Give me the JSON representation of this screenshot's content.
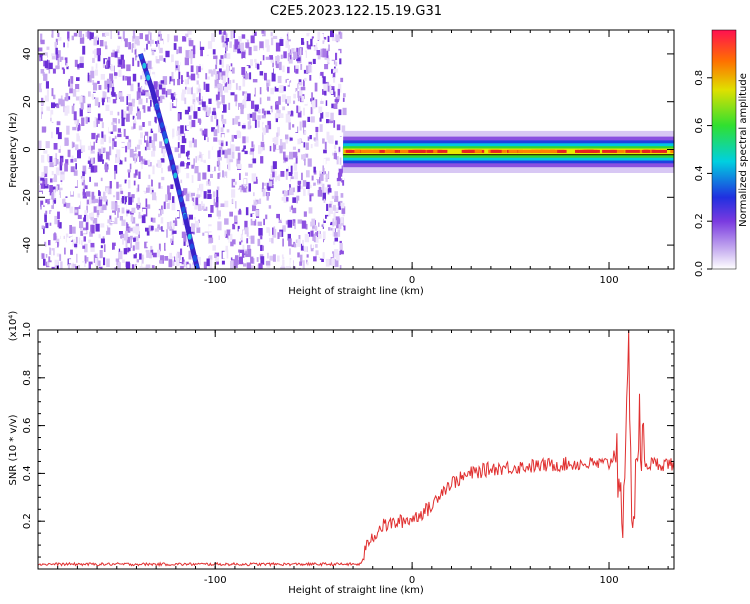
{
  "title": "C2E5.2023.122.15.19.G31",
  "chart_data": [
    {
      "type": "heatmap",
      "xlabel": "Height of straight line (km)",
      "ylabel": "Frequency (Hz)",
      "xlim": [
        -190,
        133
      ],
      "ylim": [
        -50,
        50
      ],
      "x_ticks": [
        -100,
        0,
        100
      ],
      "y_ticks": [
        -40,
        -20,
        0,
        20,
        40
      ],
      "colorbar": {
        "label": "Normalized spectral amplitude",
        "range": [
          0.0,
          1.0
        ],
        "ticks": [
          "0.0",
          "0.2",
          "0.4",
          "0.6",
          "0.8"
        ]
      },
      "noise_region": {
        "x_from": -190,
        "x_to": -35
      },
      "diagonal_trace": [
        {
          "x": -138,
          "y": 40
        },
        {
          "x": -132,
          "y": 25
        },
        {
          "x": -127,
          "y": 10
        },
        {
          "x": -122,
          "y": -5
        },
        {
          "x": -117,
          "y": -22
        },
        {
          "x": -112,
          "y": -40
        },
        {
          "x": -109,
          "y": -50
        }
      ],
      "carrier_band": {
        "x_from": -35,
        "x_to": 133,
        "center_hz": -1,
        "halfwidth_hz": 4
      }
    },
    {
      "type": "line",
      "xlabel": "Height of straight line (km)",
      "ylabel": "SNR (10 * v/v)",
      "y_multiplier": "(x10⁴)",
      "xlim": [
        -190,
        133
      ],
      "ylim": [
        0,
        1.0
      ],
      "x_ticks": [
        -100,
        0,
        100
      ],
      "y_ticks": [
        0.2,
        0.4,
        0.6,
        0.8,
        1.0
      ],
      "series": [
        {
          "color": "#e03030",
          "points": [
            [
              -190,
              0.02
            ],
            [
              -150,
              0.02
            ],
            [
              -100,
              0.02
            ],
            [
              -60,
              0.02
            ],
            [
              -26,
              0.02
            ],
            [
              -22,
              0.12
            ],
            [
              -15,
              0.18
            ],
            [
              -5,
              0.2
            ],
            [
              0,
              0.21
            ],
            [
              6,
              0.24
            ],
            [
              10,
              0.26
            ],
            [
              14,
              0.32
            ],
            [
              20,
              0.36
            ],
            [
              30,
              0.4
            ],
            [
              40,
              0.42
            ],
            [
              60,
              0.43
            ],
            [
              80,
              0.44
            ],
            [
              100,
              0.44
            ],
            [
              104,
              0.5
            ],
            [
              108,
              0.2
            ],
            [
              110,
              0.98
            ],
            [
              112,
              0.15
            ],
            [
              115,
              0.6
            ],
            [
              118,
              0.44
            ],
            [
              133,
              0.44
            ]
          ]
        }
      ]
    }
  ]
}
